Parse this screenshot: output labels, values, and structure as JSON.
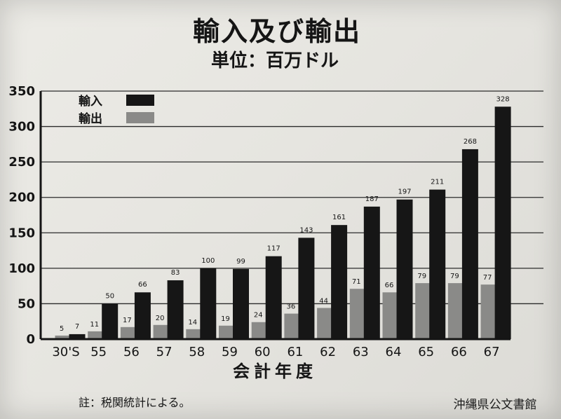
{
  "header": {
    "title": "輸入及び輸出",
    "subtitle": "単位：百万ドル"
  },
  "chart_data": {
    "type": "bar",
    "title": "輸入及び輸出",
    "subtitle": "単位：百万ドル",
    "xlabel": "会計年度",
    "ylabel": "",
    "ylim": [
      0,
      350
    ],
    "yticks": [
      0,
      50,
      100,
      150,
      200,
      250,
      300,
      350
    ],
    "grid": true,
    "legend_position": "top-left",
    "categories": [
      "30'S",
      "55",
      "56",
      "57",
      "58",
      "59",
      "60",
      "61",
      "62",
      "63",
      "64",
      "65",
      "66",
      "67"
    ],
    "series": [
      {
        "name": "輸入",
        "color": "#161616",
        "values": [
          7,
          50,
          66,
          83,
          100,
          99,
          117,
          143,
          161,
          187,
          197,
          211,
          268,
          328
        ]
      },
      {
        "name": "輸出",
        "color": "#8a8a88",
        "values": [
          5,
          11,
          17,
          20,
          14,
          19,
          24,
          36,
          44,
          71,
          66,
          79,
          79,
          77
        ]
      }
    ]
  },
  "footer": {
    "note": "註：税関統計による。",
    "watermark": "沖縄県公文書館"
  }
}
